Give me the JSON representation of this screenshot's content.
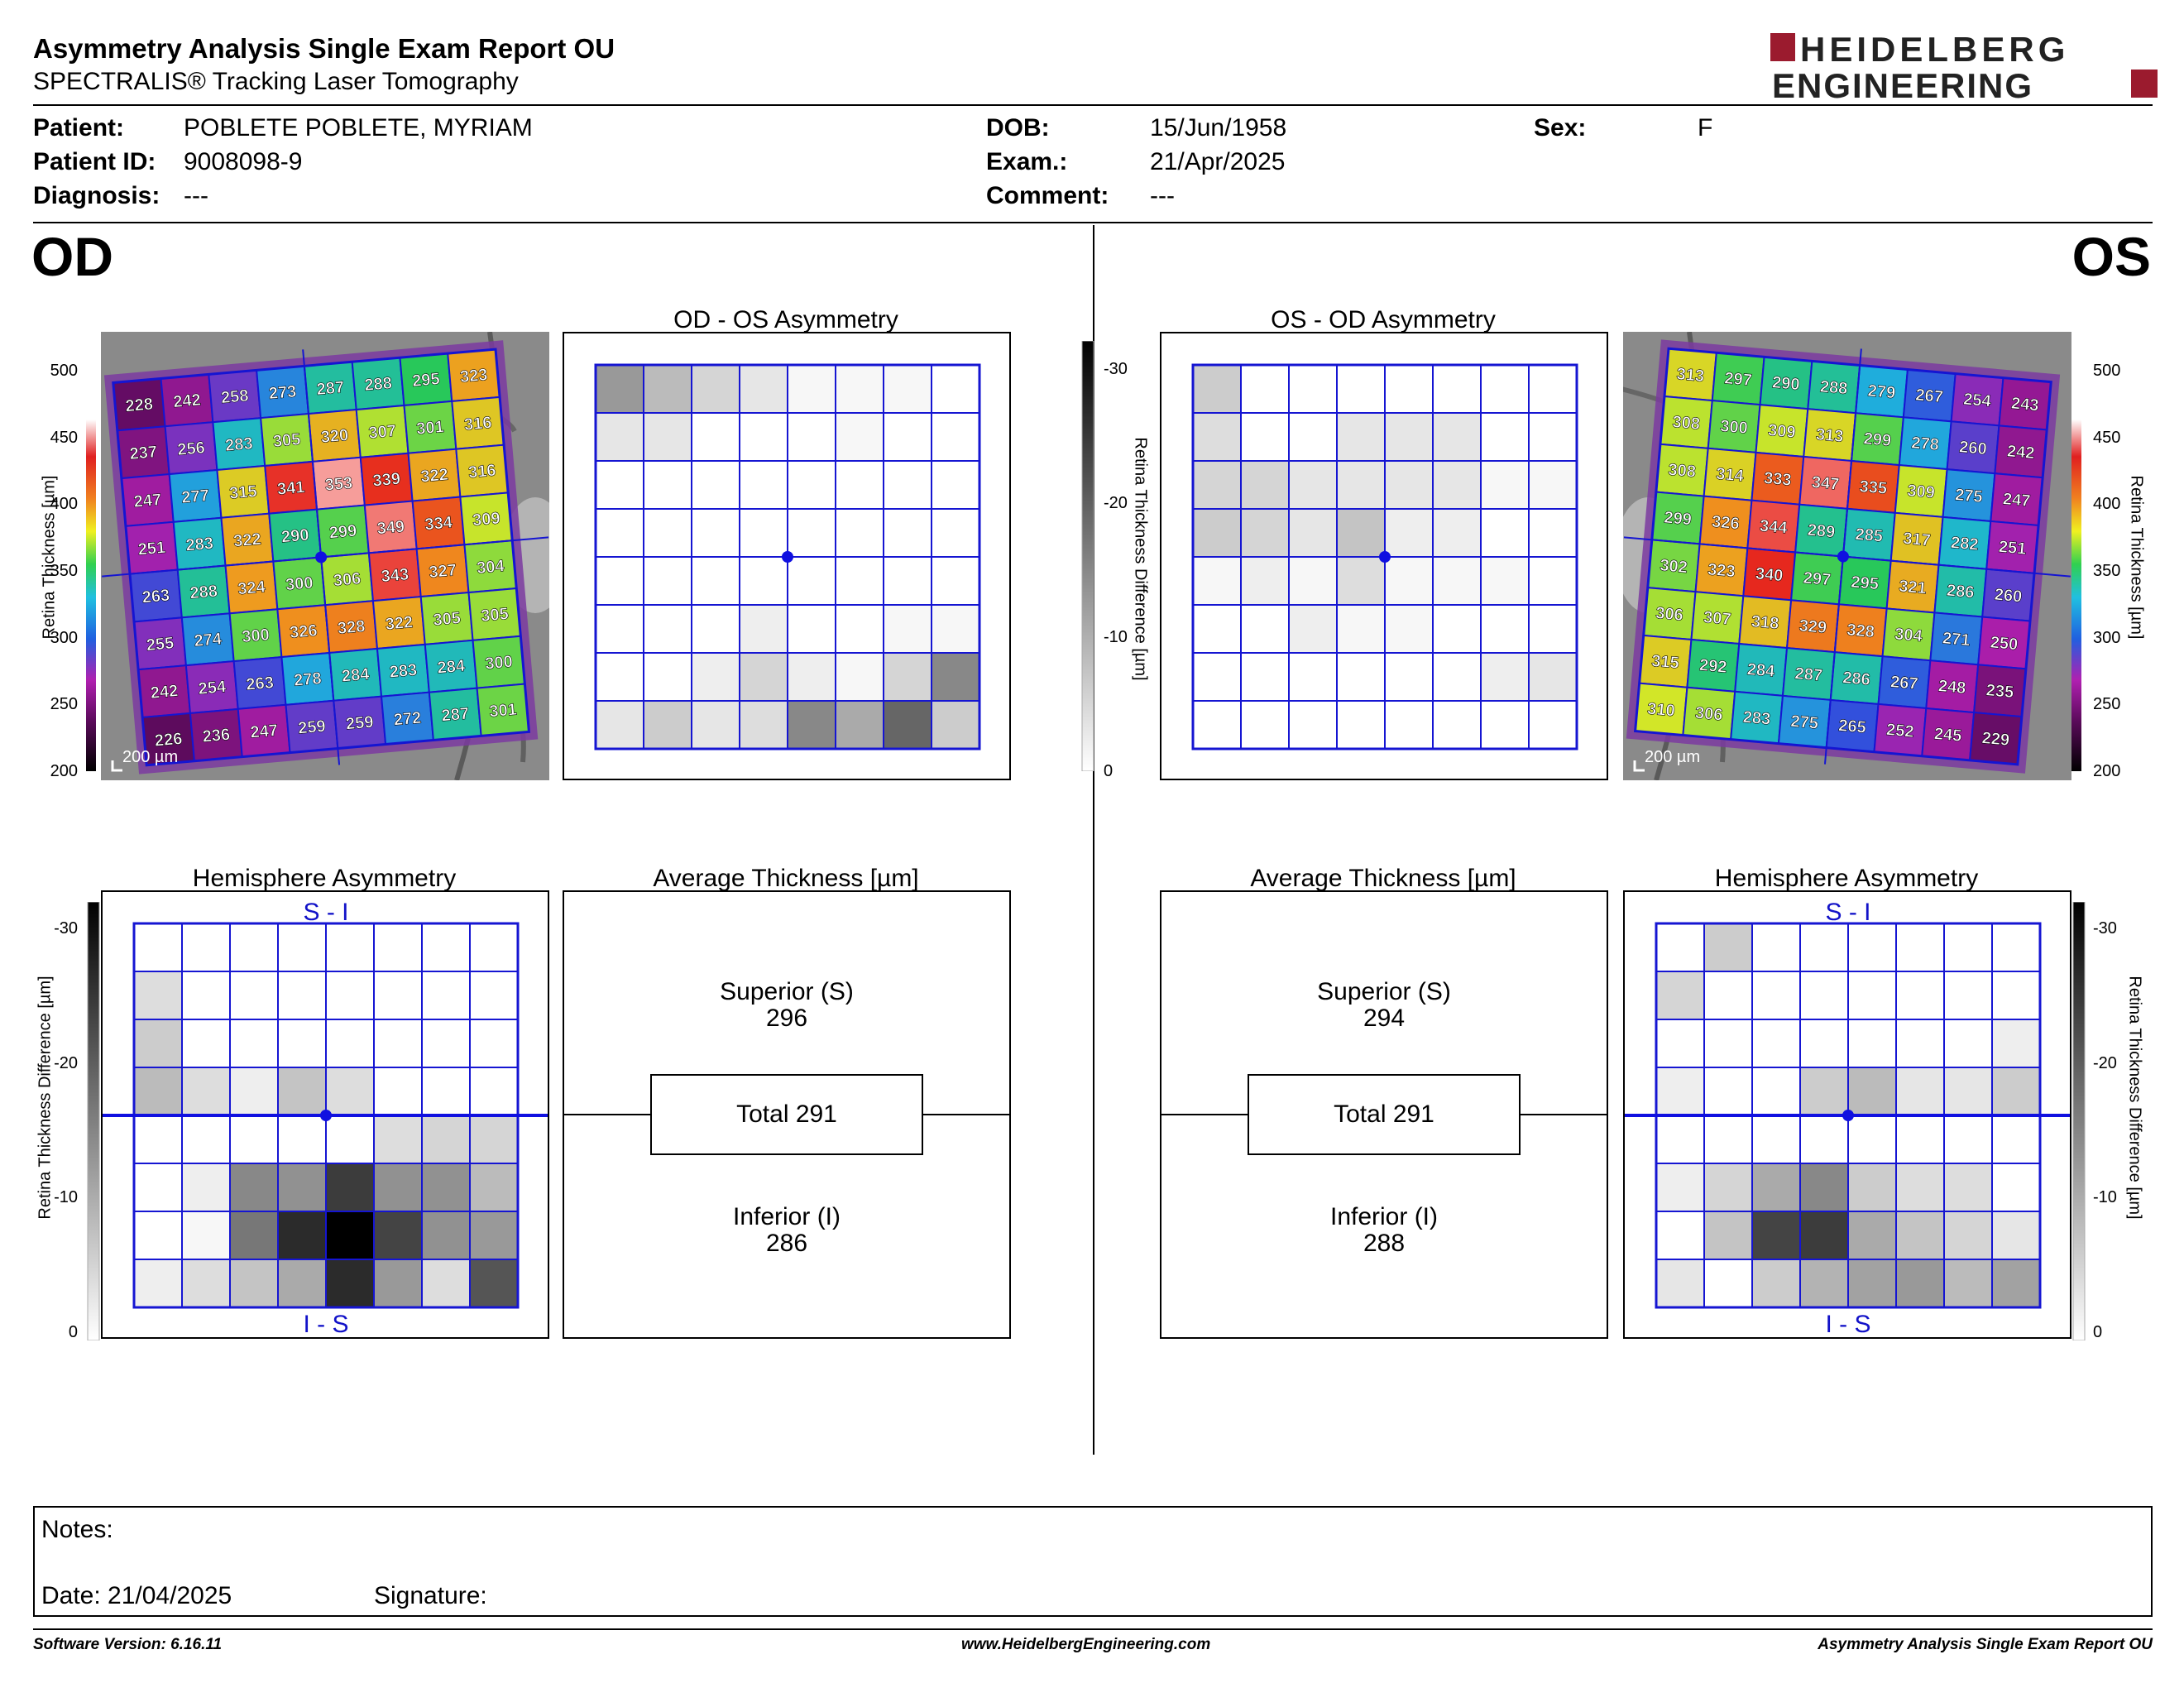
{
  "header": {
    "title": "Asymmetry Analysis Single Exam Report OU",
    "subtitle": "SPECTRALIS® Tracking Laser Tomography",
    "logo_line1": "HEIDELBERG",
    "logo_line2": "ENGINEERING"
  },
  "patient": {
    "patient_label": "Patient:",
    "patient_value": "POBLETE POBLETE, MYRIAM",
    "id_label": "Patient ID:",
    "id_value": "9008098-9",
    "diagnosis_label": "Diagnosis:",
    "diagnosis_value": "---",
    "dob_label": "DOB:",
    "dob_value": "15/Jun/1958",
    "exam_label": "Exam.:",
    "exam_value": "21/Apr/2025",
    "comment_label": "Comment:",
    "comment_value": "---",
    "sex_label": "Sex:",
    "sex_value": "F"
  },
  "od": {
    "label": "OD",
    "asym_title": "OD - OS Asymmetry",
    "hemi_title": "Hemisphere Asymmetry",
    "avg_title": "Average Thickness [µm]",
    "superior_label": "Superior (S)",
    "superior_value": "296",
    "total_label": "Total 291",
    "inferior_label": "Inferior (I)",
    "inferior_value": "286",
    "scalebar": "200 µm",
    "hemi_top": "S - I",
    "hemi_bottom": "I - S",
    "thickness": [
      [
        228,
        242,
        258,
        273,
        287,
        288,
        295,
        323
      ],
      [
        237,
        256,
        283,
        305,
        320,
        307,
        301,
        316
      ],
      [
        247,
        277,
        315,
        341,
        353,
        339,
        322,
        316
      ],
      [
        251,
        283,
        322,
        290,
        299,
        349,
        334,
        309
      ],
      [
        263,
        288,
        324,
        300,
        306,
        343,
        327,
        304
      ],
      [
        255,
        274,
        300,
        326,
        328,
        322,
        305,
        305
      ],
      [
        242,
        254,
        263,
        278,
        284,
        283,
        284,
        300
      ],
      [
        226,
        236,
        247,
        259,
        259,
        272,
        287,
        301
      ]
    ],
    "asym_grid": [
      [
        12,
        8,
        5,
        3,
        1,
        1,
        1,
        0
      ],
      [
        3,
        3,
        0,
        0,
        0,
        1,
        0,
        0
      ],
      [
        0,
        0,
        0,
        0,
        0,
        0,
        0,
        0
      ],
      [
        0,
        0,
        0,
        0,
        0,
        0,
        0,
        0
      ],
      [
        0,
        0,
        0,
        0,
        0,
        0,
        0,
        0
      ],
      [
        0,
        0,
        0,
        2,
        0,
        0,
        1,
        1
      ],
      [
        0,
        0,
        2,
        5,
        2,
        1,
        5,
        14
      ],
      [
        3,
        6,
        3,
        4,
        14,
        10,
        18,
        6
      ]
    ],
    "hemi_grid": [
      [
        0,
        0,
        0,
        0,
        0,
        0,
        0,
        0
      ],
      [
        4,
        0,
        0,
        0,
        0,
        0,
        0,
        0
      ],
      [
        6,
        0,
        0,
        0,
        0,
        0,
        0,
        0
      ],
      [
        8,
        4,
        2,
        7,
        4,
        0,
        0,
        0
      ],
      [
        0,
        0,
        0,
        0,
        0,
        4,
        5,
        5
      ],
      [
        0,
        2,
        14,
        13,
        23,
        13,
        13,
        8
      ],
      [
        0,
        1,
        16,
        25,
        30,
        22,
        13,
        12
      ],
      [
        2,
        4,
        7,
        10,
        25,
        12,
        4,
        20
      ]
    ]
  },
  "os": {
    "label": "OS",
    "asym_title": "OS - OD Asymmetry",
    "hemi_title": "Hemisphere Asymmetry",
    "avg_title": "Average Thickness [µm]",
    "superior_label": "Superior (S)",
    "superior_value": "294",
    "total_label": "Total 291",
    "inferior_label": "Inferior (I)",
    "inferior_value": "288",
    "scalebar": "200 µm",
    "hemi_top": "S - I",
    "hemi_bottom": "I - S",
    "thickness": [
      [
        313,
        297,
        290,
        288,
        279,
        267,
        254,
        243
      ],
      [
        308,
        300,
        309,
        313,
        299,
        278,
        260,
        242
      ],
      [
        308,
        314,
        333,
        347,
        335,
        309,
        275,
        247
      ],
      [
        299,
        326,
        344,
        289,
        285,
        317,
        282,
        251
      ],
      [
        302,
        323,
        340,
        297,
        295,
        321,
        286,
        260
      ],
      [
        306,
        307,
        318,
        329,
        328,
        304,
        271,
        250
      ],
      [
        315,
        292,
        284,
        287,
        286,
        267,
        248,
        235
      ],
      [
        310,
        306,
        283,
        275,
        265,
        252,
        245,
        229
      ]
    ],
    "asym_grid": [
      [
        6,
        0,
        0,
        0,
        0,
        0,
        0,
        0
      ],
      [
        4,
        0,
        0,
        3,
        3,
        3,
        0,
        0
      ],
      [
        5,
        5,
        3,
        3,
        3,
        3,
        1,
        1
      ],
      [
        6,
        5,
        3,
        7,
        2,
        2,
        0,
        0
      ],
      [
        1,
        2,
        1,
        4,
        1,
        1,
        1,
        0
      ],
      [
        0,
        0,
        2,
        1,
        1,
        0,
        0,
        0
      ],
      [
        0,
        0,
        0,
        0,
        0,
        0,
        2,
        3
      ],
      [
        0,
        0,
        0,
        0,
        0,
        0,
        0,
        0
      ]
    ],
    "hemi_grid": [
      [
        0,
        6,
        0,
        0,
        0,
        0,
        0,
        0
      ],
      [
        5,
        0,
        0,
        0,
        0,
        0,
        0,
        0
      ],
      [
        0,
        0,
        0,
        0,
        0,
        0,
        0,
        2
      ],
      [
        2,
        0,
        0,
        6,
        8,
        3,
        3,
        6
      ],
      [
        0,
        0,
        0,
        0,
        0,
        0,
        0,
        0
      ],
      [
        2,
        5,
        10,
        14,
        6,
        4,
        4,
        0
      ],
      [
        0,
        7,
        22,
        23,
        10,
        7,
        5,
        3
      ],
      [
        3,
        0,
        6,
        9,
        11,
        12,
        8,
        11
      ]
    ]
  },
  "scales": {
    "thickness_ticks": [
      "500",
      "450",
      "400",
      "350",
      "300",
      "250",
      "200"
    ],
    "diff_ticks": [
      "-30",
      "-20",
      "-10",
      "0"
    ],
    "thickness_axis": "Retina  Thickness [µm]",
    "diff_axis": "Retina Thickness Difference [µm]"
  },
  "colors": {
    "grid": "#1515d2",
    "center": "#1010e0",
    "label_color": "#1212c8"
  },
  "notes": {
    "notes_label": "Notes:",
    "date_label": "Date: 21/04/2025",
    "signature_label": "Signature:"
  },
  "footer": {
    "software": "Software Version: 6.16.11",
    "website": "www.HeidelbergEngineering.com",
    "report": "Asymmetry Analysis Single Exam Report OU"
  }
}
